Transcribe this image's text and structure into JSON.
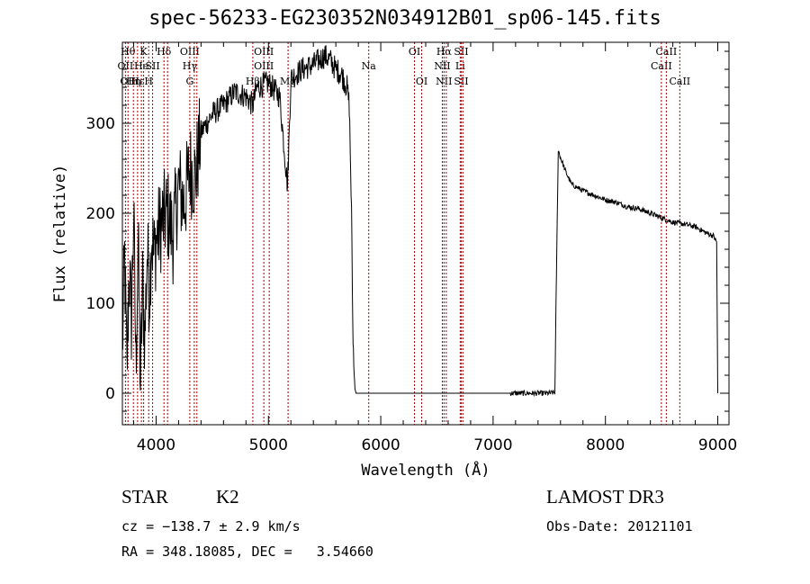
{
  "title": "spec-56233-EG230352N034912B01_sp06-145.fits",
  "chart_data": {
    "type": "line",
    "xlabel": "Wavelength (Å)",
    "ylabel": "Flux (relative)",
    "xlim": [
      3700,
      9100
    ],
    "ylim": [
      -35,
      390
    ],
    "xticks": [
      4000,
      5000,
      6000,
      7000,
      8000,
      9000
    ],
    "yticks": [
      0,
      100,
      200,
      300
    ],
    "grid": false,
    "series": [
      {
        "x": [
          3700,
          3720,
          3740,
          3760,
          3780,
          3800,
          3820,
          3840,
          3860,
          3880,
          3900,
          3920,
          3940,
          3960,
          3980,
          4000,
          4050,
          4100,
          4150,
          4200,
          4250,
          4300,
          4350,
          4400,
          4500,
          4600,
          4700,
          4800,
          4860,
          4900,
          5000,
          5100,
          5170,
          5200,
          5300,
          5400,
          5500,
          5550,
          5600,
          5650,
          5700,
          5720,
          5740,
          5750,
          5760,
          5770,
          5780,
          5790,
          5800,
          5850,
          6000,
          6500,
          7000,
          7150,
          7200,
          7300,
          7400,
          7500,
          7550,
          7560,
          7580,
          7600,
          7650,
          7700,
          7800,
          7900,
          8000,
          8100,
          8200,
          8300,
          8400,
          8500,
          8600,
          8700,
          8800,
          8900,
          8960,
          8990,
          9000
        ],
        "y": [
          50,
          150,
          20,
          140,
          80,
          200,
          30,
          170,
          10,
          120,
          60,
          160,
          110,
          180,
          150,
          170,
          190,
          200,
          175,
          230,
          210,
          250,
          240,
          290,
          310,
          320,
          335,
          330,
          320,
          340,
          345,
          330,
          230,
          350,
          360,
          365,
          375,
          370,
          360,
          355,
          340,
          320,
          200,
          80,
          30,
          5,
          0,
          0,
          0,
          0,
          0,
          0,
          0,
          0,
          0,
          0,
          0,
          0,
          1,
          100,
          270,
          262,
          245,
          232,
          225,
          220,
          215,
          212,
          207,
          205,
          200,
          195,
          190,
          188,
          185,
          178,
          175,
          168,
          0
        ]
      }
    ],
    "lines": [
      {
        "wave": 3727,
        "color": "#a00000",
        "labels": [
          {
            "text": "OII",
            "row": 2
          }
        ]
      },
      {
        "wave": 3750,
        "color": "#a00000",
        "labels": [
          {
            "text": "Hθ",
            "row": 1
          },
          {
            "text": "OII",
            "row": 3
          }
        ]
      },
      {
        "wave": 3798,
        "color": "#a00000",
        "labels": [
          {
            "text": "Hη",
            "row": 3
          }
        ]
      },
      {
        "wave": 3835,
        "color": "#a00000",
        "labels": [
          {
            "text": "Hε",
            "row": 3
          }
        ]
      },
      {
        "wave": 3869,
        "color": "#a00000",
        "labels": [
          {
            "text": "He",
            "row": 2
          }
        ]
      },
      {
        "wave": 3889,
        "color": "#a00000",
        "labels": [
          {
            "text": "K",
            "row": 1
          }
        ]
      },
      {
        "wave": 3934,
        "color": "#a00000",
        "labels": [
          {
            "text": "H",
            "row": 3
          }
        ]
      },
      {
        "wave": 3969,
        "color": "#a00000",
        "labels": [
          {
            "text": "SII",
            "row": 2
          }
        ]
      },
      {
        "wave": 4070,
        "color": "#a00000",
        "labels": [
          {
            "text": "Hδ",
            "row": 1
          }
        ]
      },
      {
        "wave": 4102,
        "color": "#a00000",
        "labels": []
      },
      {
        "wave": 4300,
        "color": "#a00000",
        "labels": [
          {
            "text": "OIII",
            "row": 1
          },
          {
            "text": "Hγ",
            "row": 2
          },
          {
            "text": "G",
            "row": 3
          }
        ]
      },
      {
        "wave": 4340,
        "color": "#a00000",
        "labels": []
      },
      {
        "wave": 4363,
        "color": "#a00000",
        "labels": []
      },
      {
        "wave": 4861,
        "color": "#a00000",
        "labels": [
          {
            "text": "Hβ",
            "row": 3
          }
        ]
      },
      {
        "wave": 4959,
        "color": "#a00000",
        "labels": [
          {
            "text": "OIII",
            "row": 1
          },
          {
            "text": "OIII",
            "row": 2
          }
        ]
      },
      {
        "wave": 5007,
        "color": "#a00000",
        "labels": []
      },
      {
        "wave": 5175,
        "color": "#a00000",
        "labels": [
          {
            "text": "Mg",
            "row": 3
          }
        ]
      },
      {
        "wave": 5893,
        "color": "#a00000",
        "labels": [
          {
            "text": "Na",
            "row": 2
          }
        ]
      },
      {
        "wave": 6300,
        "color": "#a00000",
        "labels": [
          {
            "text": "OI",
            "row": 1
          }
        ]
      },
      {
        "wave": 6364,
        "color": "#a00000",
        "labels": [
          {
            "text": "OI",
            "row": 3
          }
        ]
      },
      {
        "wave": 6548,
        "color": "#a00000",
        "labels": [
          {
            "text": "NII",
            "row": 2
          }
        ]
      },
      {
        "wave": 6563,
        "color": "#a00000",
        "labels": [
          {
            "text": "Hα",
            "row": 1
          },
          {
            "text": "NII",
            "row": 3
          }
        ]
      },
      {
        "wave": 6583,
        "color": "#a00000",
        "labels": []
      },
      {
        "wave": 6707,
        "color": "#a00000",
        "labels": [
          {
            "text": "Li",
            "row": 2
          }
        ]
      },
      {
        "wave": 6716,
        "color": "#a00000",
        "labels": [
          {
            "text": "SII",
            "row": 1
          },
          {
            "text": "SII",
            "row": 3
          }
        ]
      },
      {
        "wave": 6731,
        "color": "#a00000",
        "labels": []
      },
      {
        "wave": 8498,
        "color": "#a00000",
        "labels": [
          {
            "text": "CaII",
            "row": 2
          }
        ]
      },
      {
        "wave": 8542,
        "color": "#a00000",
        "labels": [
          {
            "text": "CaII",
            "row": 1
          }
        ]
      },
      {
        "wave": 8662,
        "color": "#a00000",
        "labels": [
          {
            "text": "CaII",
            "row": 3
          }
        ]
      }
    ]
  },
  "info": {
    "class": "STAR",
    "subclass": "K2",
    "cz": "cz = −138.7 ± 2.9 km/s",
    "radec": "RA = 348.18085, DEC =   3.54660",
    "survey": "LAMOST DR3",
    "obsdate": "Obs-Date: 20121101"
  }
}
